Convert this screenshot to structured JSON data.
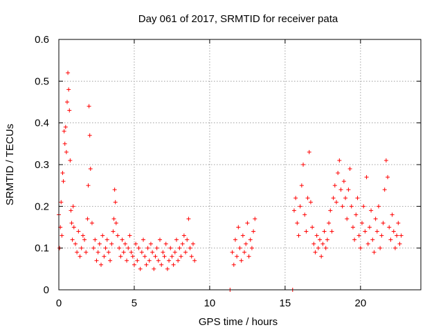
{
  "chart_data": {
    "type": "scatter",
    "title": "Day 061 of 2017, SRMTID for receiver pata",
    "xlabel": "GPS time / hours",
    "ylabel": "SRMTID / TECUs",
    "xlim": [
      0,
      24
    ],
    "ylim": [
      0,
      0.6
    ],
    "grid": true,
    "marker": "+",
    "color": "#ff0000",
    "x_ticks": [
      0,
      5,
      10,
      15,
      20
    ],
    "x_tick_labels": [
      "0",
      "5",
      "10",
      "15",
      "20"
    ],
    "y_ticks": [
      0,
      0.1,
      0.2,
      0.3,
      0.4,
      0.5,
      0.6
    ],
    "y_tick_labels": [
      "0",
      "0.1",
      "0.2",
      "0.3",
      "0.4",
      "0.5",
      "0.6"
    ],
    "series": [
      {
        "name": "SRMTID",
        "x": [
          0.0,
          0.05,
          0.1,
          0.15,
          0.2,
          0.25,
          0.3,
          0.35,
          0.4,
          0.45,
          0.5,
          0.55,
          0.6,
          0.65,
          0.7,
          0.75,
          0.8,
          0.85,
          0.9,
          0.95,
          1.0,
          1.1,
          1.2,
          1.3,
          1.4,
          1.5,
          1.6,
          1.7,
          1.8,
          1.9,
          1.95,
          2.0,
          2.05,
          2.1,
          2.2,
          2.3,
          2.4,
          2.5,
          2.6,
          2.7,
          2.8,
          2.9,
          3.0,
          3.1,
          3.2,
          3.3,
          3.4,
          3.5,
          3.6,
          3.65,
          3.7,
          3.75,
          3.8,
          3.9,
          4.0,
          4.1,
          4.2,
          4.3,
          4.4,
          4.5,
          4.6,
          4.7,
          4.8,
          4.9,
          5.0,
          5.1,
          5.2,
          5.3,
          5.4,
          5.5,
          5.6,
          5.7,
          5.8,
          5.9,
          6.0,
          6.1,
          6.2,
          6.3,
          6.4,
          6.5,
          6.6,
          6.7,
          6.8,
          6.9,
          7.0,
          7.1,
          7.2,
          7.3,
          7.4,
          7.5,
          7.6,
          7.7,
          7.8,
          7.9,
          8.0,
          8.1,
          8.2,
          8.3,
          8.4,
          8.5,
          8.6,
          8.7,
          8.8,
          8.9,
          9.0,
          11.35,
          11.5,
          11.6,
          11.7,
          11.8,
          11.9,
          12.0,
          12.1,
          12.2,
          12.3,
          12.4,
          12.5,
          12.6,
          12.7,
          12.8,
          12.9,
          13.0,
          15.5,
          15.6,
          15.7,
          15.8,
          15.9,
          16.0,
          16.1,
          16.2,
          16.3,
          16.4,
          16.5,
          16.6,
          16.7,
          16.8,
          16.9,
          17.0,
          17.1,
          17.2,
          17.3,
          17.4,
          17.5,
          17.6,
          17.7,
          17.8,
          17.9,
          18.0,
          18.1,
          18.2,
          18.3,
          18.4,
          18.5,
          18.6,
          18.7,
          18.8,
          18.9,
          19.0,
          19.1,
          19.2,
          19.3,
          19.4,
          19.5,
          19.6,
          19.7,
          19.8,
          19.9,
          20.0,
          20.1,
          20.2,
          20.3,
          20.4,
          20.5,
          20.6,
          20.7,
          20.8,
          20.9,
          21.0,
          21.1,
          21.2,
          21.3,
          21.4,
          21.5,
          21.6,
          21.7,
          21.8,
          21.9,
          22.0,
          22.1,
          22.2,
          22.3,
          22.4,
          22.5,
          22.6,
          22.7
        ],
        "y": [
          0.18,
          0.1,
          0.15,
          0.21,
          0.13,
          0.28,
          0.26,
          0.38,
          0.35,
          0.39,
          0.33,
          0.45,
          0.52,
          0.48,
          0.43,
          0.31,
          0.19,
          0.16,
          0.12,
          0.2,
          0.15,
          0.11,
          0.09,
          0.14,
          0.08,
          0.1,
          0.13,
          0.12,
          0.09,
          0.17,
          0.25,
          0.44,
          0.37,
          0.29,
          0.16,
          0.1,
          0.12,
          0.07,
          0.09,
          0.11,
          0.06,
          0.13,
          0.08,
          0.1,
          0.12,
          0.09,
          0.07,
          0.11,
          0.14,
          0.17,
          0.24,
          0.21,
          0.16,
          0.13,
          0.1,
          0.08,
          0.12,
          0.09,
          0.11,
          0.07,
          0.1,
          0.13,
          0.09,
          0.08,
          0.06,
          0.11,
          0.07,
          0.1,
          0.05,
          0.09,
          0.12,
          0.08,
          0.06,
          0.1,
          0.07,
          0.11,
          0.09,
          0.05,
          0.08,
          0.1,
          0.07,
          0.12,
          0.06,
          0.09,
          0.08,
          0.11,
          0.05,
          0.07,
          0.1,
          0.08,
          0.06,
          0.09,
          0.12,
          0.07,
          0.1,
          0.08,
          0.11,
          0.13,
          0.09,
          0.12,
          0.17,
          0.1,
          0.08,
          0.11,
          0.07,
          0.0,
          0.09,
          0.06,
          0.12,
          0.08,
          0.15,
          0.1,
          0.07,
          0.13,
          0.09,
          0.11,
          0.16,
          0.08,
          0.12,
          0.1,
          0.14,
          0.17,
          0.0,
          0.19,
          0.22,
          0.16,
          0.13,
          0.2,
          0.25,
          0.3,
          0.18,
          0.14,
          0.22,
          0.33,
          0.21,
          0.15,
          0.11,
          0.09,
          0.13,
          0.1,
          0.12,
          0.08,
          0.11,
          0.14,
          0.1,
          0.12,
          0.16,
          0.19,
          0.14,
          0.22,
          0.25,
          0.21,
          0.28,
          0.31,
          0.24,
          0.2,
          0.26,
          0.22,
          0.17,
          0.24,
          0.29,
          0.2,
          0.15,
          0.12,
          0.18,
          0.22,
          0.13,
          0.1,
          0.16,
          0.2,
          0.14,
          0.27,
          0.11,
          0.15,
          0.19,
          0.12,
          0.09,
          0.17,
          0.14,
          0.2,
          0.1,
          0.13,
          0.16,
          0.24,
          0.31,
          0.27,
          0.15,
          0.12,
          0.18,
          0.14,
          0.1,
          0.13,
          0.16,
          0.11,
          0.13
        ]
      }
    ]
  }
}
